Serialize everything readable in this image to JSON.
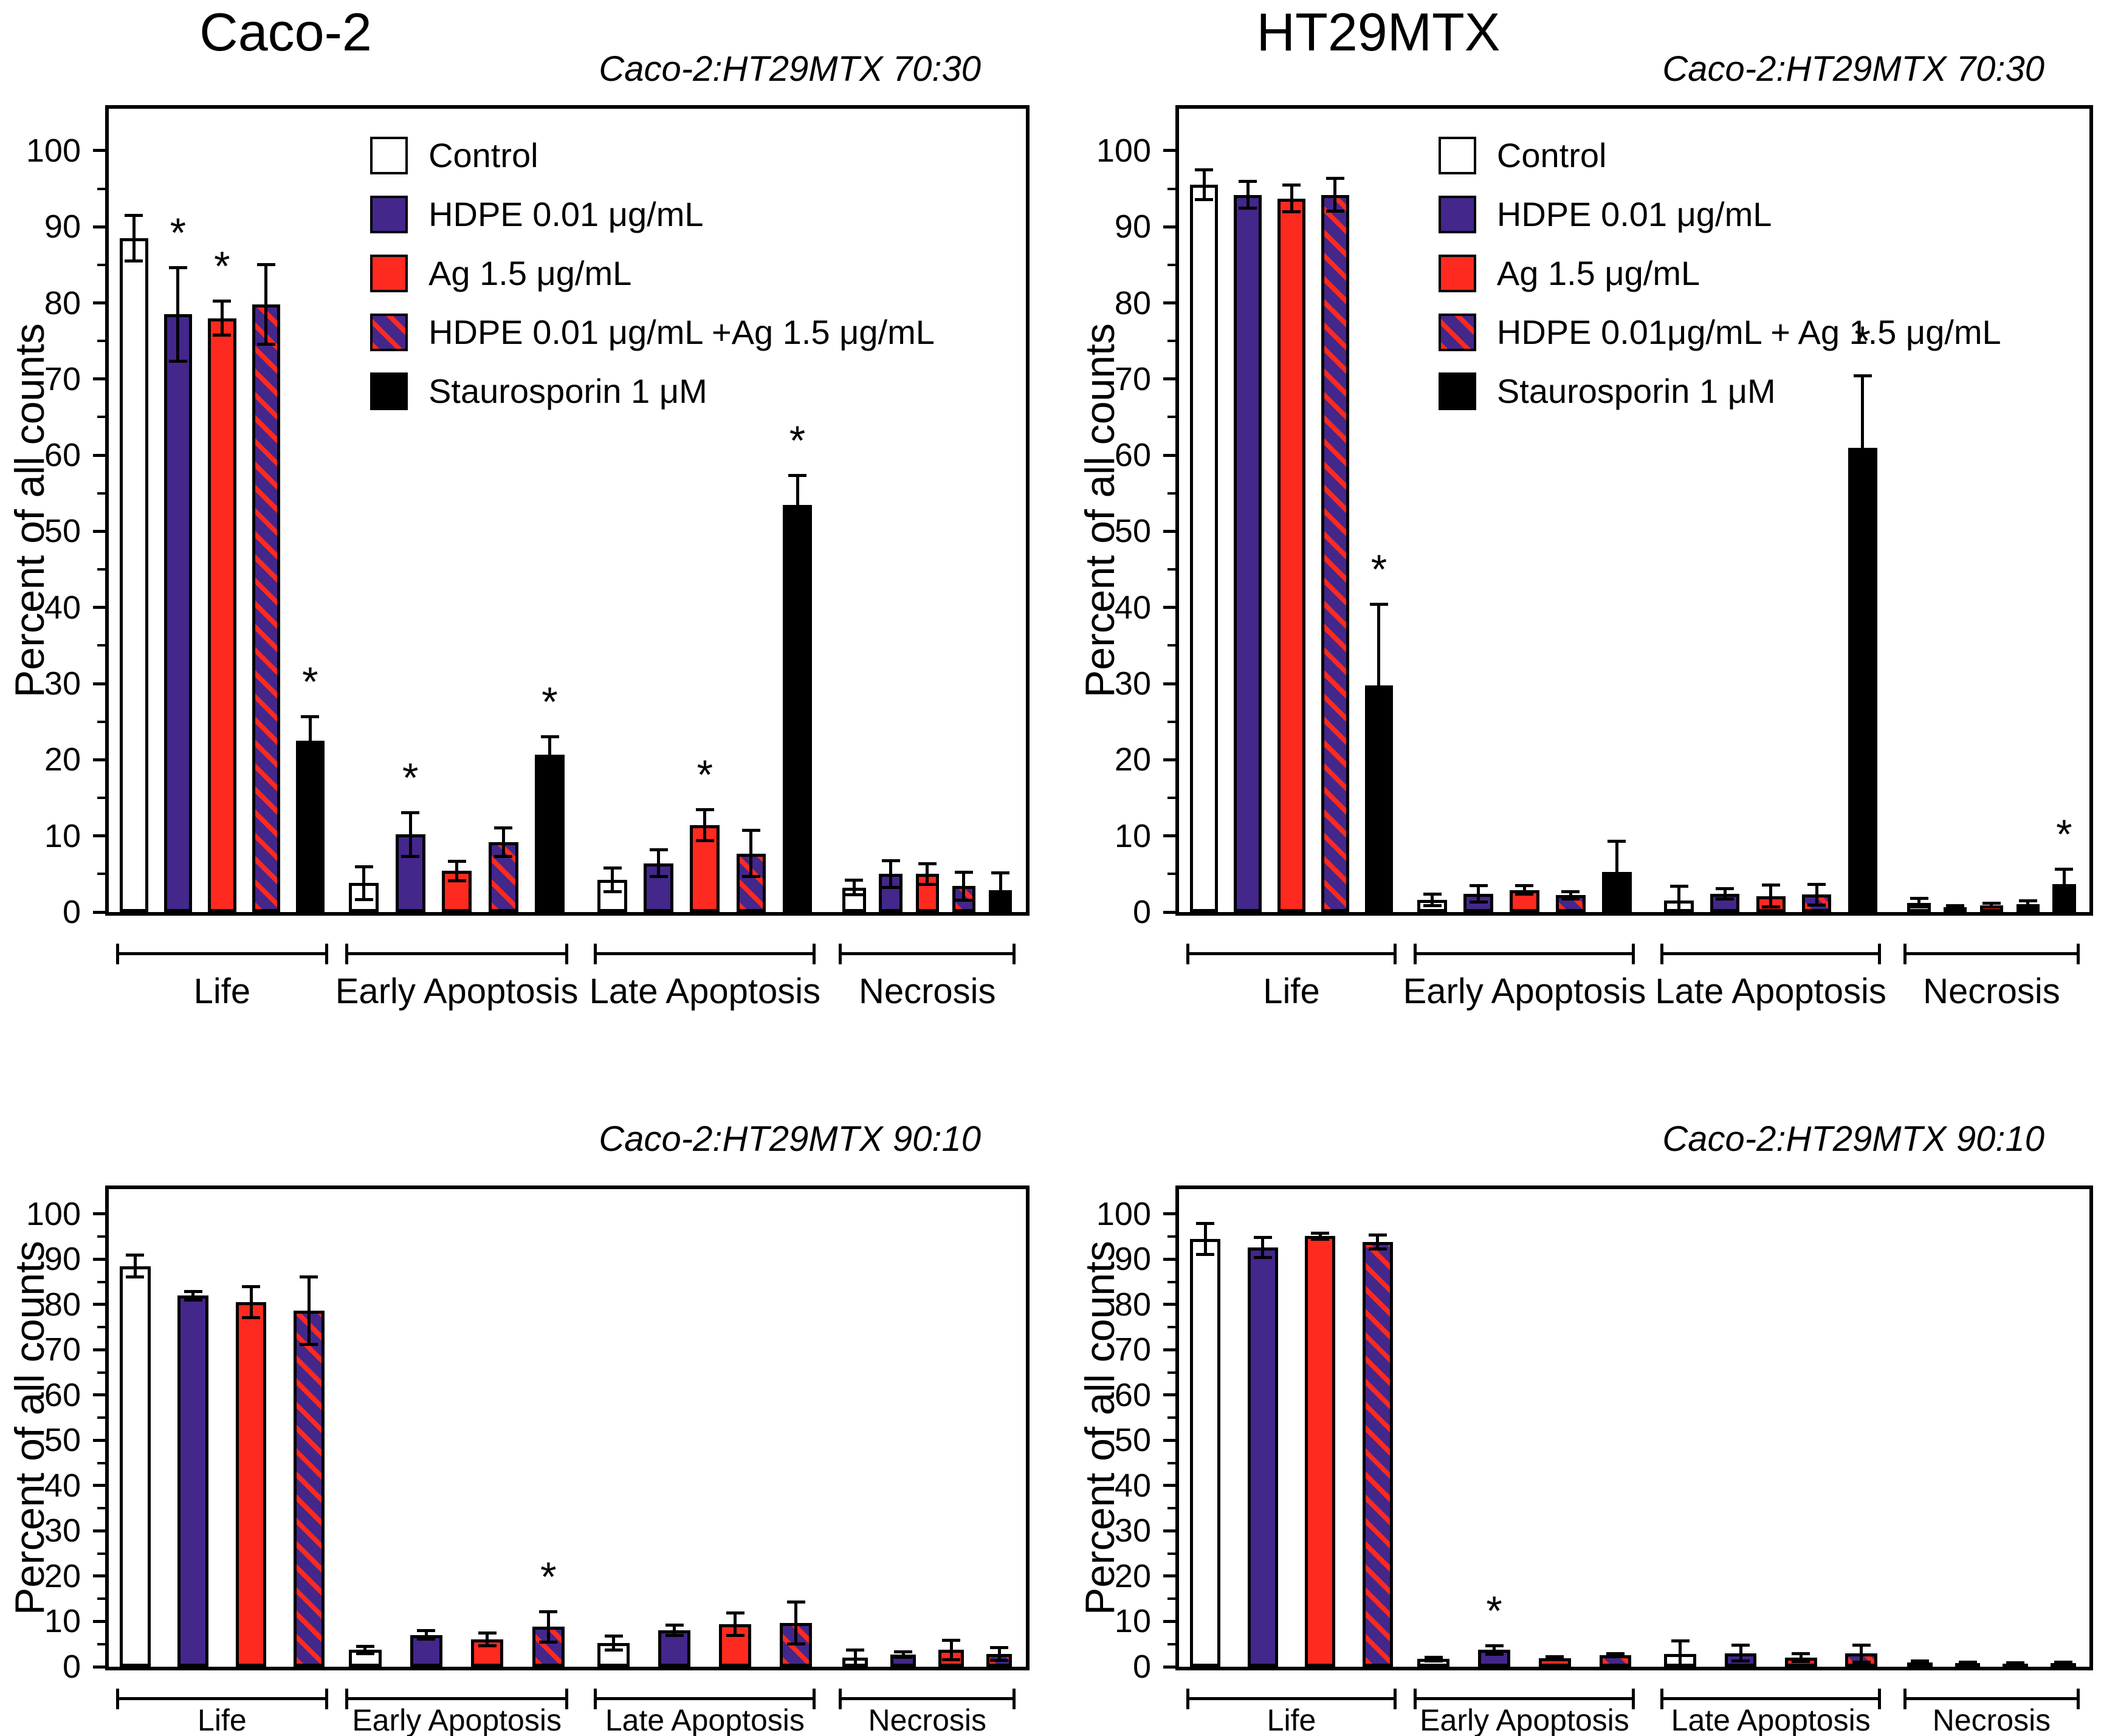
{
  "figure": {
    "sig_marker": "*",
    "background": "#ffffff",
    "yticks": [
      0,
      10,
      20,
      30,
      40,
      50,
      60,
      70,
      80,
      90,
      100
    ],
    "colors": {
      "control": "#ffffff",
      "hdpe": "#43278b",
      "ag": "#fe2a1f",
      "stauro": "#000000",
      "axis": "#000000"
    }
  },
  "chart_data": [
    {
      "type": "bar",
      "title": "Caco-2",
      "subtitle": "Caco-2:HT29MTX  70:30",
      "ylabel": "Percent of all counts",
      "ylim": [
        0,
        105.5
      ],
      "grid": false,
      "legend_position": "upper-center-inside",
      "categories": [
        "Life",
        "Early Apoptosis",
        "Late Apoptosis",
        "Necrosis"
      ],
      "legend": [
        {
          "label": "Control",
          "style": "control"
        },
        {
          "label": "HDPE 0.01 μg/mL",
          "style": "hdpe"
        },
        {
          "label": "Ag 1.5 μg/mL",
          "style": "ag"
        },
        {
          "label": "HDPE 0.01 μg/mL +Ag 1.5 μg/mL",
          "style": "combo"
        },
        {
          "label": "Staurosporin 1 μM",
          "style": "stauro"
        }
      ],
      "series": [
        {
          "name": "Control",
          "style": "control",
          "values": [
            88.5,
            3.8,
            4.2,
            3.2
          ],
          "errors": [
            3.0,
            2.2,
            1.6,
            1.0
          ],
          "sig": [
            0,
            0,
            0,
            0
          ]
        },
        {
          "name": "HDPE 0.01 μg/mL",
          "style": "hdpe",
          "values": [
            78.5,
            10.2,
            6.4,
            5.0
          ],
          "errors": [
            6.2,
            2.9,
            1.8,
            1.8
          ],
          "sig": [
            1,
            1,
            0,
            0
          ]
        },
        {
          "name": "Ag 1.5 μg/mL",
          "style": "ag",
          "values": [
            78.0,
            5.4,
            11.4,
            5.0
          ],
          "errors": [
            2.3,
            1.3,
            2.1,
            1.4
          ],
          "sig": [
            1,
            0,
            1,
            0
          ]
        },
        {
          "name": "HDPE 0.01 μg/mL +Ag 1.5 μg/mL",
          "style": "combo",
          "values": [
            79.8,
            9.2,
            7.7,
            3.4
          ],
          "errors": [
            5.3,
            1.9,
            3.1,
            1.9
          ],
          "sig": [
            0,
            0,
            0,
            0
          ]
        },
        {
          "name": "Staurosporin 1 μM",
          "style": "stauro",
          "values": [
            22.5,
            20.7,
            53.5,
            2.9
          ],
          "errors": [
            3.2,
            2.4,
            3.9,
            2.3
          ],
          "sig": [
            1,
            1,
            1,
            0
          ]
        }
      ]
    },
    {
      "type": "bar",
      "title": "HT29MTX",
      "subtitle": "Caco-2:HT29MTX  70:30",
      "ylabel": "Percent of all counts",
      "ylim": [
        0,
        105.5
      ],
      "grid": false,
      "legend_position": "upper-center-inside",
      "categories": [
        "Life",
        "Early Apoptosis",
        "Late Apoptosis",
        "Necrosis"
      ],
      "legend": [
        {
          "label": "Control",
          "style": "control"
        },
        {
          "label": "HDPE 0.01 μg/mL",
          "style": "hdpe"
        },
        {
          "label": "Ag 1.5 μg/mL",
          "style": "ag"
        },
        {
          "label": "HDPE 0.01μg/mL + Ag 1.5 μg/mL",
          "style": "combo"
        },
        {
          "label": "Staurosporin 1 μM",
          "style": "stauro"
        }
      ],
      "series": [
        {
          "name": "Control",
          "style": "control",
          "values": [
            95.5,
            1.6,
            1.5,
            1.2
          ],
          "errors": [
            2.0,
            0.8,
            1.9,
            0.6
          ],
          "sig": [
            0,
            0,
            0,
            0
          ]
        },
        {
          "name": "HDPE 0.01 μg/mL",
          "style": "hdpe",
          "values": [
            94.2,
            2.4,
            2.4,
            0.6
          ],
          "errors": [
            1.8,
            1.1,
            0.7,
            0.3
          ],
          "sig": [
            0,
            0,
            0,
            0
          ]
        },
        {
          "name": "Ag 1.5 μg/mL",
          "style": "ag",
          "values": [
            93.7,
            2.9,
            2.1,
            0.9
          ],
          "errors": [
            1.8,
            0.6,
            1.5,
            0.3
          ],
          "sig": [
            0,
            0,
            0,
            0
          ]
        },
        {
          "name": "HDPE 0.01μg/mL + Ag 1.5 μg/mL",
          "style": "combo",
          "values": [
            94.2,
            2.2,
            2.3,
            1.0
          ],
          "errors": [
            2.2,
            0.5,
            1.4,
            0.5
          ],
          "sig": [
            0,
            0,
            0,
            0
          ]
        },
        {
          "name": "Staurosporin 1 μM",
          "style": "stauro",
          "values": [
            29.8,
            5.3,
            61.0,
            3.7
          ],
          "errors": [
            10.7,
            4.0,
            9.5,
            2.0
          ],
          "sig": [
            1,
            0,
            1,
            1
          ]
        }
      ]
    },
    {
      "type": "bar",
      "title": "",
      "subtitle": "Caco-2:HT29MTX  90:10",
      "ylabel": "Percent of all counts",
      "ylim": [
        0,
        105.5
      ],
      "grid": false,
      "categories": [
        "Life",
        "Early Apoptosis",
        "Late Apoptosis",
        "Necrosis"
      ],
      "series": [
        {
          "name": "Control",
          "style": "control",
          "values": [
            88.5,
            3.7,
            5.2,
            2.0
          ],
          "errors": [
            2.5,
            0.9,
            1.6,
            1.8
          ],
          "sig": [
            0,
            0,
            0,
            0
          ]
        },
        {
          "name": "HDPE 0.01 μg/mL",
          "style": "hdpe",
          "values": [
            82.0,
            7.0,
            8.0,
            2.7
          ],
          "errors": [
            1.0,
            1.0,
            1.2,
            0.7
          ],
          "sig": [
            0,
            0,
            0,
            0
          ]
        },
        {
          "name": "Ag 1.5 μg/mL",
          "style": "ag",
          "values": [
            80.5,
            6.0,
            9.4,
            3.7
          ],
          "errors": [
            3.5,
            1.5,
            2.5,
            2.2
          ],
          "sig": [
            0,
            0,
            0,
            0
          ]
        },
        {
          "name": "HDPE 0.01 μg/mL +Ag 1.5 μg/mL",
          "style": "combo",
          "values": [
            78.7,
            8.8,
            9.6,
            2.8
          ],
          "errors": [
            7.5,
            3.4,
            4.7,
            1.5
          ],
          "sig": [
            0,
            1,
            0,
            0
          ]
        }
      ]
    },
    {
      "type": "bar",
      "title": "",
      "subtitle": "Caco-2:HT29MTX  90:10",
      "ylabel": "Percent of all counts",
      "ylim": [
        0,
        105.5
      ],
      "grid": false,
      "categories": [
        "Life",
        "Early Apoptosis",
        "Late Apoptosis",
        "Necrosis"
      ],
      "series": [
        {
          "name": "Control",
          "style": "control",
          "values": [
            94.5,
            1.7,
            2.8,
            0.9
          ],
          "errors": [
            3.5,
            0.5,
            3.0,
            0.4
          ],
          "sig": [
            0,
            0,
            0,
            0
          ]
        },
        {
          "name": "HDPE 0.01 μg/mL",
          "style": "hdpe",
          "values": [
            92.6,
            3.7,
            3.0,
            0.8
          ],
          "errors": [
            2.3,
            1.0,
            1.8,
            0.3
          ],
          "sig": [
            0,
            1,
            0,
            0
          ]
        },
        {
          "name": "Ag 1.5 μg/mL",
          "style": "ag",
          "values": [
            95.1,
            1.9,
            2.0,
            0.7
          ],
          "errors": [
            0.8,
            0.4,
            0.9,
            0.3
          ],
          "sig": [
            0,
            0,
            0,
            0
          ]
        },
        {
          "name": "HDPE 0.01μg/mL + Ag 1.5 μg/mL",
          "style": "combo",
          "values": [
            93.8,
            2.6,
            2.9,
            0.8
          ],
          "errors": [
            1.6,
            0.4,
            1.9,
            0.3
          ],
          "sig": [
            0,
            0,
            0,
            0
          ]
        }
      ]
    }
  ]
}
